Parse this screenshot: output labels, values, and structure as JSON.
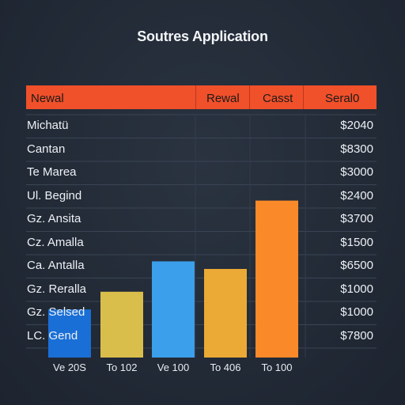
{
  "chart_data": {
    "type": "bar",
    "title": "Soutres Application",
    "header": [
      "Newal",
      "Rewal",
      "Casst",
      "Seral0"
    ],
    "rows": [
      {
        "label": "Michatü",
        "value": "$2040"
      },
      {
        "label": "Cantan",
        "value": "$8300"
      },
      {
        "label": "Te Marea",
        "value": "$3000"
      },
      {
        "label": "Ul. Begind",
        "value": "$2400"
      },
      {
        "label": "Gz. Ansita",
        "value": "$3700"
      },
      {
        "label": "Cz. Amalla",
        "value": "$1500"
      },
      {
        "label": "Ca. Antalla",
        "value": "$6500"
      },
      {
        "label": "Gz. Reralla",
        "value": "$1000"
      },
      {
        "label": "Gz. Selsed",
        "value": "$1000"
      },
      {
        "label": "LC. Gend",
        "value": "$7800"
      }
    ],
    "categories": [
      "Ve 20S",
      "To 102",
      "Ve 100",
      "To 406",
      "To 100"
    ],
    "values": [
      1.9,
      2.6,
      3.8,
      3.5,
      6.2
    ],
    "ylim": [
      0,
      8
    ],
    "colors": [
      "#1a6fd6",
      "#d9be4b",
      "#3b9fec",
      "#eba935",
      "#fa8a29"
    ],
    "grid": true
  }
}
